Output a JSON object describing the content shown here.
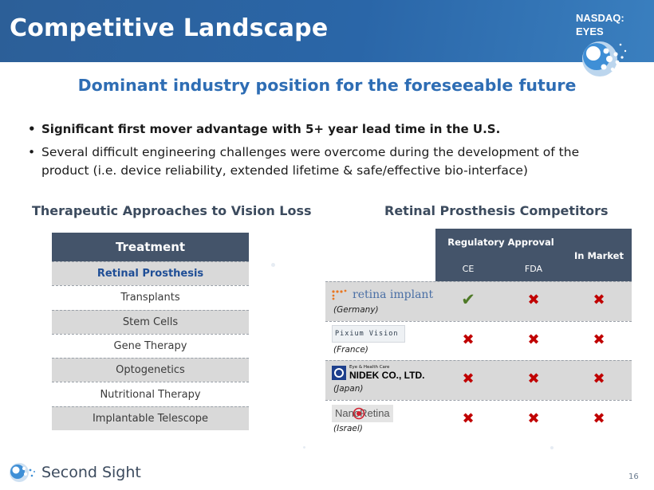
{
  "slide": {
    "title": "Competitive Landscape",
    "ticker": "NASDAQ:\nEYES",
    "headline": "Dominant industry position for the foreseeable future",
    "page_number": "16"
  },
  "bullets": [
    "Significant first mover advantage with 5+ year lead time in the U.S.",
    "Several difficult engineering challenges were overcome during the development of the product (i.e. device reliability, extended lifetime & safe/effective bio-interface)"
  ],
  "left_section": {
    "title": "Therapeutic Approaches to Vision Loss",
    "header": "Treatment",
    "rows": [
      "Retinal Prosthesis",
      "Transplants",
      "Stem Cells",
      "Gene Therapy",
      "Optogenetics",
      "Nutritional Therapy",
      "Implantable Telescope"
    ]
  },
  "right_section": {
    "title": "Retinal Prosthesis Competitors",
    "header_group": "Regulatory Approval",
    "col_ce": "CE",
    "col_fda": "FDA",
    "col_market": "In Market",
    "competitors": [
      {
        "logo_text": "retina implant",
        "country": "(Germany)",
        "ce": "yes",
        "fda": "no",
        "market": "no"
      },
      {
        "logo_text": "Pixium Vision",
        "country": "(France)",
        "ce": "no",
        "fda": "no",
        "market": "no"
      },
      {
        "logo_text": "NIDEK CO., LTD.",
        "logo_subtext": "Eye & Health Care",
        "country": "(Japan)",
        "ce": "no",
        "fda": "no",
        "market": "no"
      },
      {
        "logo_text": "NanoRetina",
        "country": "(Israel)",
        "ce": "no",
        "fda": "no",
        "market": "no"
      }
    ],
    "check_color": "#4f7a28",
    "cross_color": "#c00000"
  },
  "footer": {
    "brand": "Second Sight"
  },
  "colors": {
    "header_blue": "#2a66a8",
    "headline_blue": "#2e6db4",
    "table_header": "#44546a",
    "row_shade": "#d9d9d9"
  }
}
